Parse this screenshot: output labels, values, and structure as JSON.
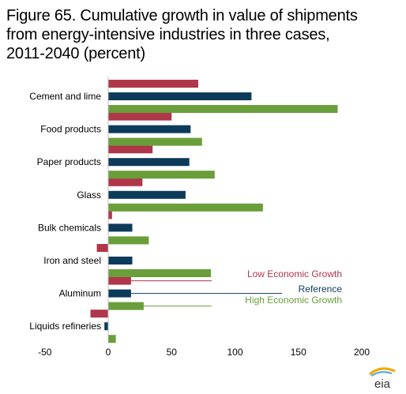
{
  "title_lines": [
    "Figure 65. Cumulative growth in value of shipments",
    "from energy-intensive industries in three cases,",
    "2011-2040 (percent)"
  ],
  "logo_text": "eia",
  "colors": {
    "low": "#b0364a",
    "reference": "#0c3b5a",
    "high": "#6a9e3a"
  },
  "chart_data": {
    "type": "bar",
    "orientation": "horizontal",
    "categories": [
      "Cement and lime",
      "Food products",
      "Paper products",
      "Glass",
      "Bulk chemicals",
      "Iron and steel",
      "Aluminum",
      "Liquids refineries"
    ],
    "series": [
      {
        "name": "Low Economic Growth",
        "key": "low",
        "values": [
          71,
          50,
          35,
          27,
          3,
          -9,
          18,
          -14
        ]
      },
      {
        "name": "Reference",
        "key": "reference",
        "values": [
          113,
          65,
          64,
          61,
          19,
          19,
          18,
          -3
        ]
      },
      {
        "name": "High Economic Growth",
        "key": "high",
        "values": [
          181,
          74,
          84,
          122,
          32,
          81,
          28,
          6
        ]
      }
    ],
    "xlim": [
      -50,
      200
    ],
    "xticks": [
      -50,
      0,
      50,
      100,
      150,
      200
    ],
    "title": "",
    "xlabel": "",
    "ylabel": ""
  }
}
